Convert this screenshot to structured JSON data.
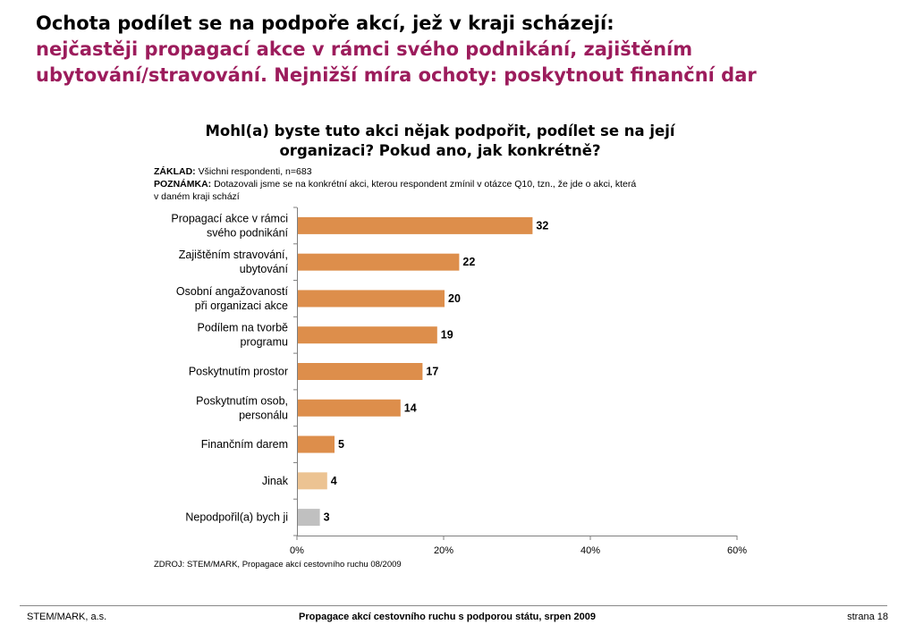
{
  "headline": {
    "line1": "Ochota podílet se na podpoře akcí, jež v kraji scházejí:",
    "accent_line1": "nejčastěji propagací akce v rámci svého podnikání, zajištěním",
    "accent_line2": "ubytování/stravování. Nejnižší míra ochoty: poskytnout finanční dar"
  },
  "question": {
    "line1": "Mohl(a) byste tuto akci nějak podpořit, podílet se na její",
    "line2": "organizaci? Pokud ano, jak konkrétně?"
  },
  "notes": {
    "base_label": "ZÁKLAD:",
    "base_text": "Všichni respondenti, n=683",
    "note_label": "POZNÁMKA:",
    "note_text_line1": "Dotazovali jsme se na konkrétní akci, kterou respondent zmínil v otázce Q10, tzn., že jde o akci, která",
    "note_text_line2": "v daném kraji schází"
  },
  "chart_data": {
    "type": "bar",
    "orientation": "horizontal",
    "title": "Mohl(a) byste tuto akci nějak podpořit, podílet se na její organizaci? Pokud ano, jak konkrétně?",
    "categories": [
      [
        "Propagací akce v rámci",
        "svého podnikání"
      ],
      [
        "Zajištěním stravování,",
        "ubytování"
      ],
      [
        "Osobní angažovaností",
        "při organizaci akce"
      ],
      [
        "Podílem na tvorbě",
        "programu"
      ],
      [
        "Poskytnutím prostor"
      ],
      [
        "Poskytnutím osob,",
        "personálu"
      ],
      [
        "Finančním darem"
      ],
      [
        "Jinak"
      ],
      [
        "Nepodpořil(a) bych ji"
      ]
    ],
    "values": [
      32,
      22,
      20,
      19,
      17,
      14,
      5,
      4,
      3
    ],
    "value_labels": [
      "32",
      "22",
      "20",
      "19",
      "17",
      "14",
      "5",
      "4",
      "3"
    ],
    "bar_colors": [
      "#dd8e4b",
      "#dd8e4b",
      "#dd8e4b",
      "#dd8e4b",
      "#dd8e4b",
      "#dd8e4b",
      "#dd8e4b",
      "#ecc392",
      "#c0c0c0"
    ],
    "xlim": [
      0,
      60
    ],
    "x_ticks": [
      0,
      20,
      40,
      60
    ],
    "x_tick_labels": [
      "0%",
      "20%",
      "40%",
      "60%"
    ],
    "grid": false
  },
  "source": "ZDROJ: STEM/MARK, Propagace akcí cestovního ruchu 08/2009",
  "footer": {
    "left": "STEM/MARK, a.s.",
    "center": "Propagace akcí cestovního ruchu s podporou státu, srpen 2009",
    "right": "strana 18"
  }
}
